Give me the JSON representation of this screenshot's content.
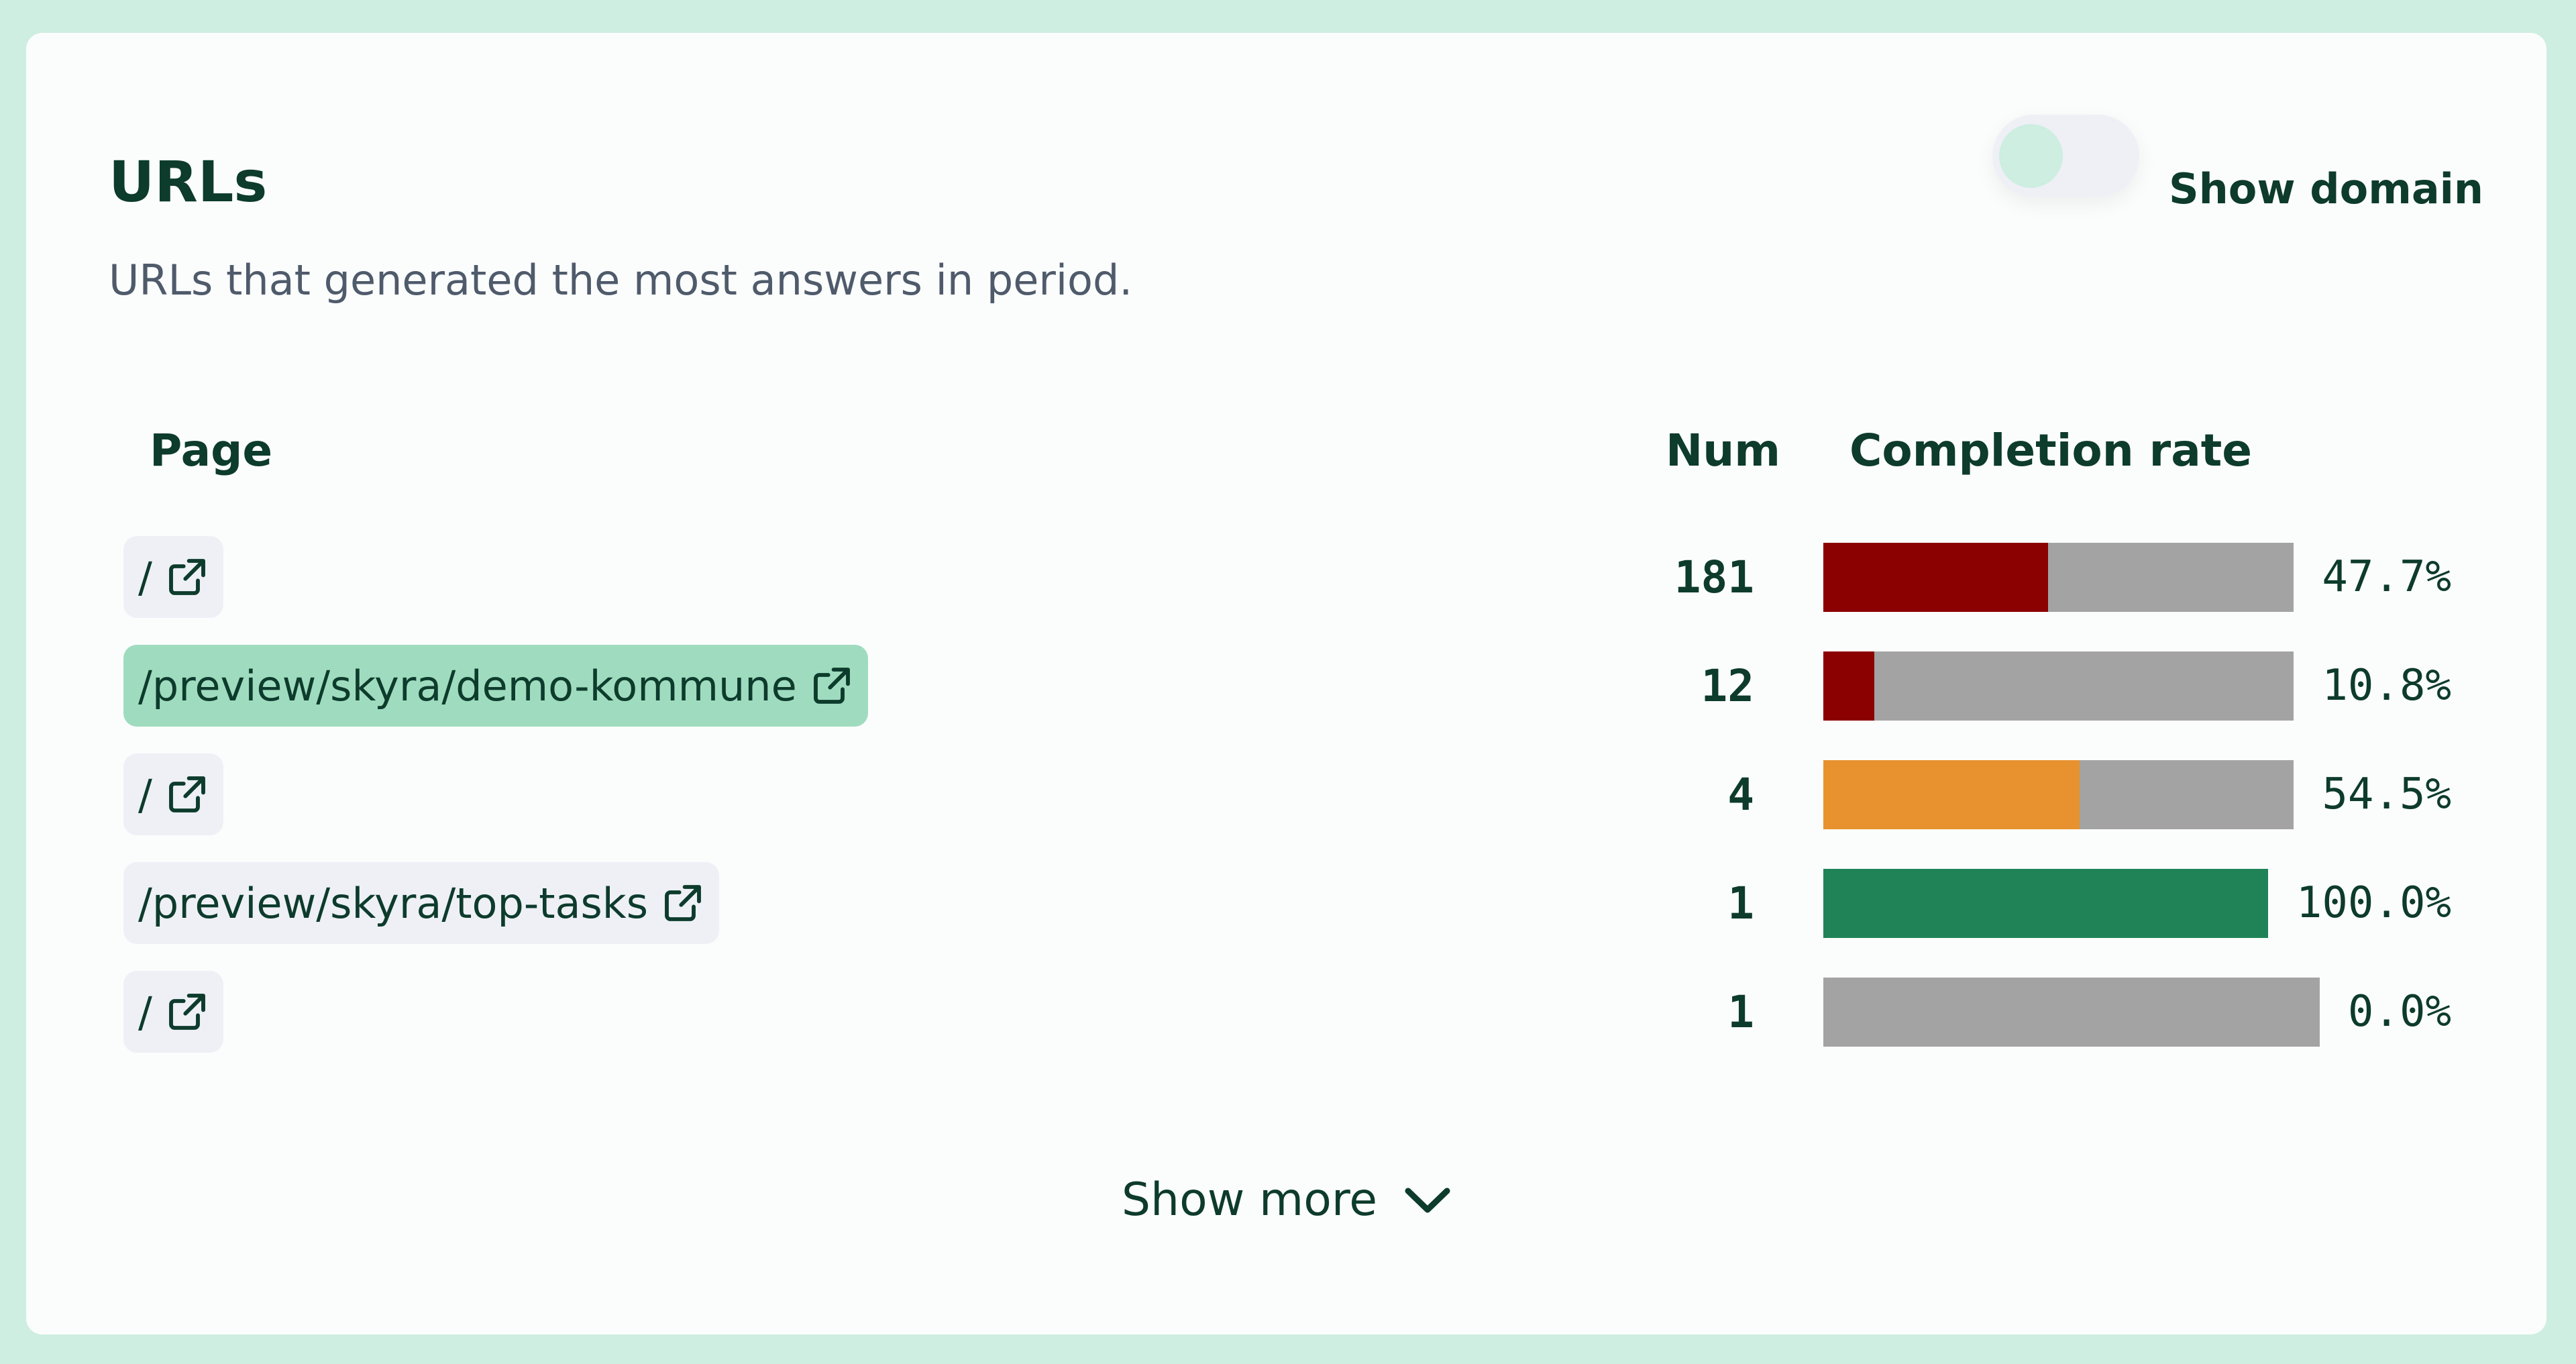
{
  "header": {
    "title": "URLs",
    "subtitle": "URLs that generated the most answers in period.",
    "toggle_label": "Show domain"
  },
  "table": {
    "columns": [
      "Page",
      "Num",
      "Completion rate"
    ],
    "rows": [
      {
        "page": "/",
        "num": 181,
        "rate": {
          "value": 47.7,
          "label": "47.7%"
        },
        "color": "#8b0000"
      },
      {
        "page": "/preview/skyra/demo-kommune",
        "num": 12,
        "rate": {
          "value": 10.8,
          "label": "10.8%"
        },
        "color": "#8b0000",
        "highlighted": true
      },
      {
        "page": "/",
        "num": 4,
        "rate": {
          "value": 54.5,
          "label": "54.5%"
        },
        "color": "#e8922f"
      },
      {
        "page": "/preview/skyra/top-tasks",
        "num": 1,
        "rate": {
          "value": 100.0,
          "label": "100.0%"
        },
        "color": "#1f8357"
      },
      {
        "page": "/",
        "num": 1,
        "rate": {
          "value": 0.0,
          "label": "0.0%"
        },
        "color": "#8b0000"
      }
    ]
  },
  "footer": {
    "show_more": "Show more"
  }
}
